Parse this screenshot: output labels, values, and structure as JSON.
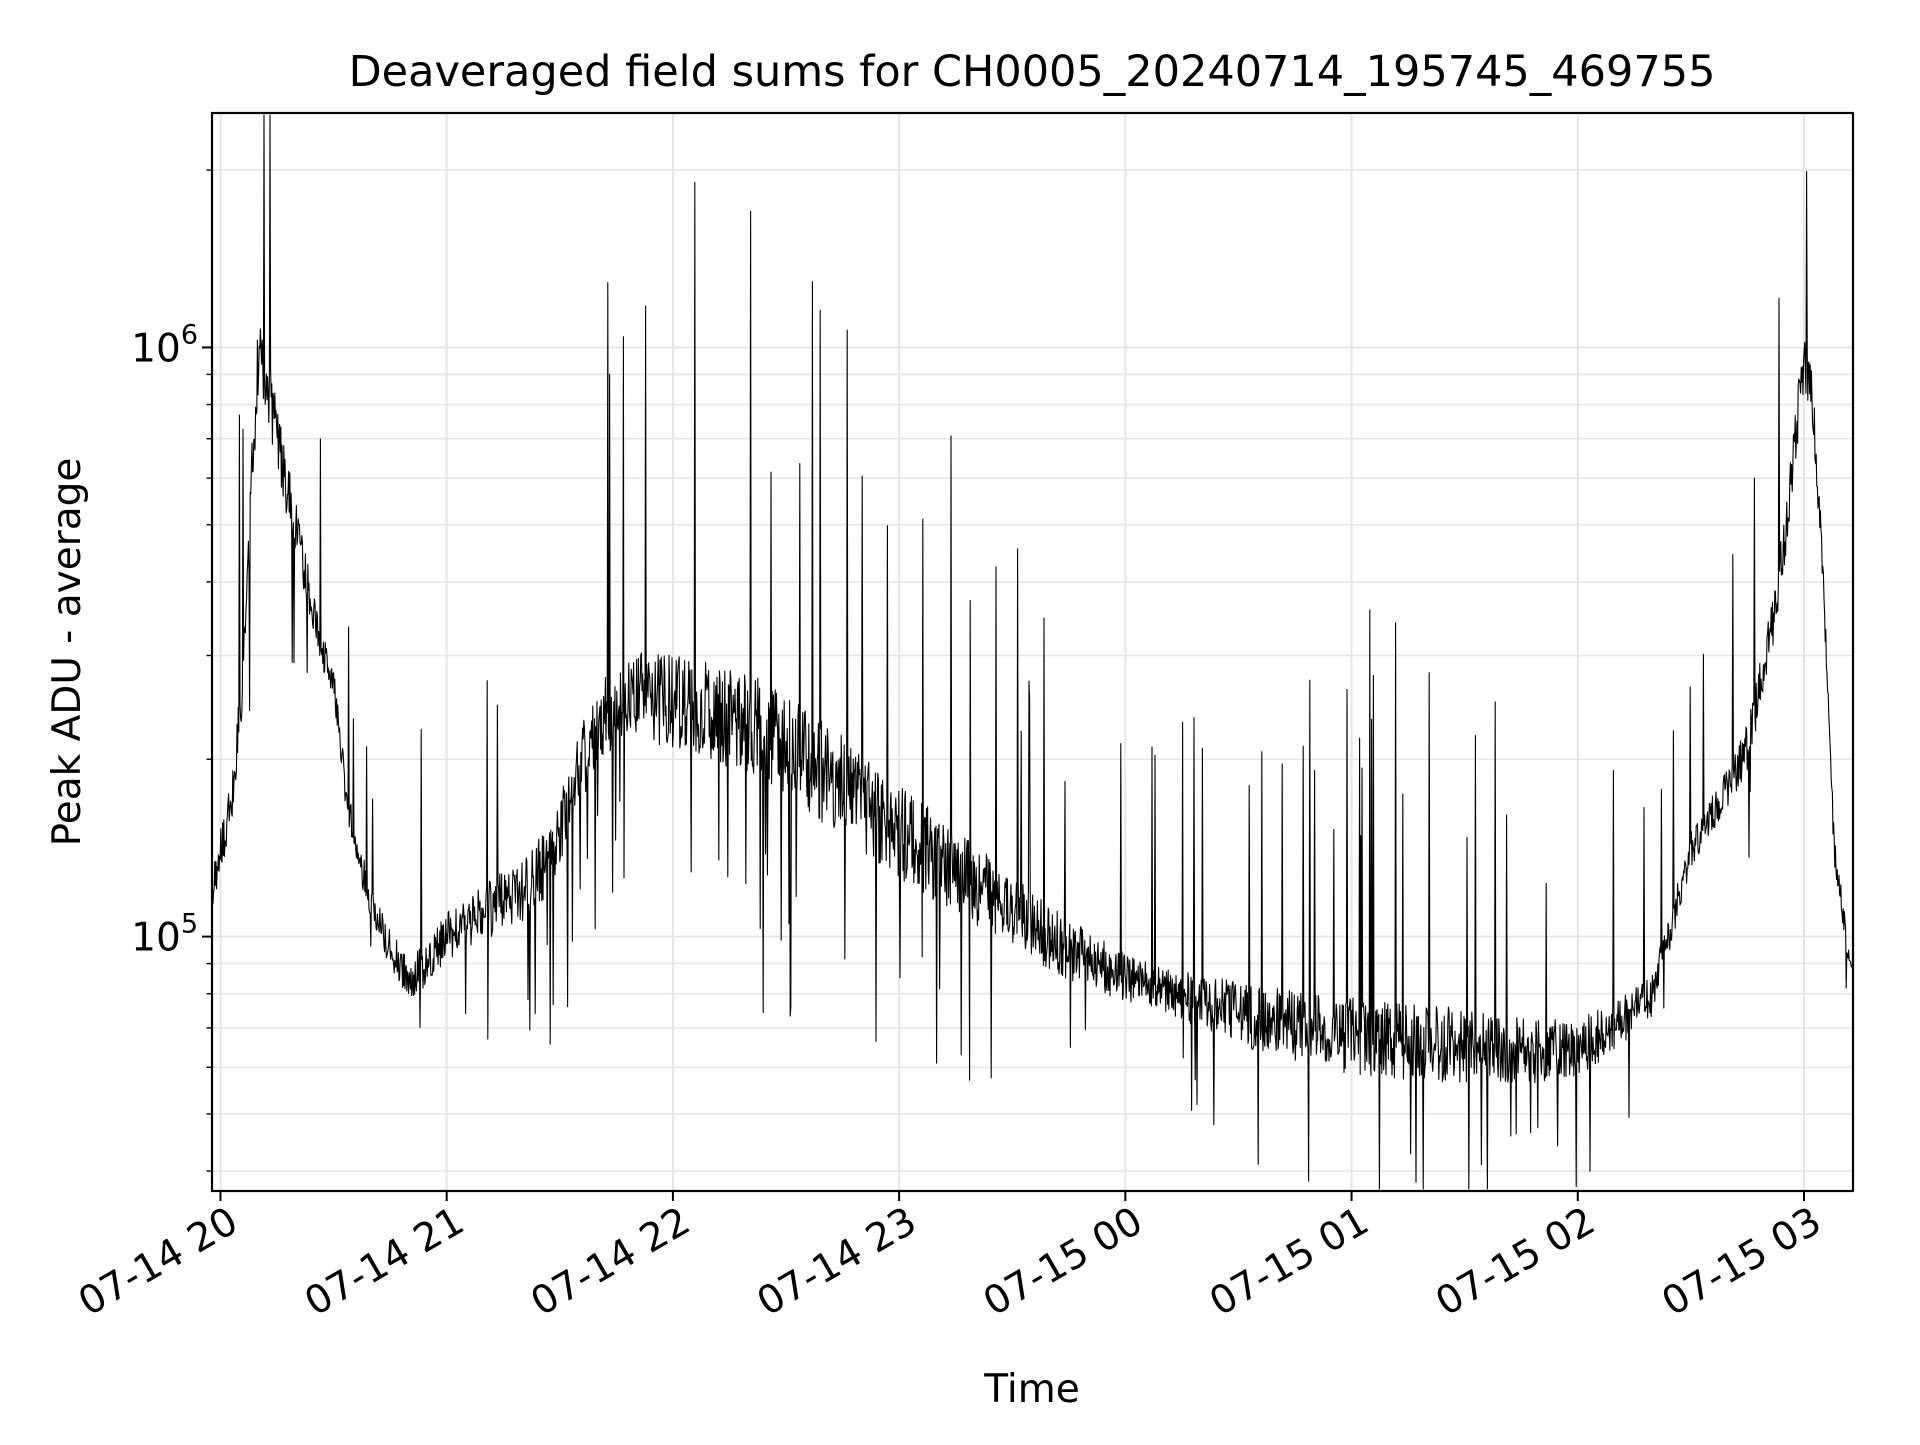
{
  "chart_data": {
    "type": "line",
    "title": "Deaveraged field sums for CH0005_20240714_195745_469755",
    "xlabel": "Time",
    "ylabel": "Peak ADU - average",
    "yscale": "log",
    "grid": true,
    "legend": "none",
    "colors": {
      "line": "#000000",
      "grid": "#e6e6e6",
      "axes": "#000000",
      "background": "#ffffff"
    },
    "xlim": [
      "2024-07-14 19:57:45",
      "2024-07-15 03:13:00"
    ],
    "ylim": [
      37000,
      2500000
    ],
    "x_ticks": [
      {
        "value": "2024-07-14 20:00",
        "label": "07-14 20"
      },
      {
        "value": "2024-07-14 21:00",
        "label": "07-14 21"
      },
      {
        "value": "2024-07-14 22:00",
        "label": "07-14 22"
      },
      {
        "value": "2024-07-14 23:00",
        "label": "07-14 23"
      },
      {
        "value": "2024-07-15 00:00",
        "label": "07-15 00"
      },
      {
        "value": "2024-07-15 01:00",
        "label": "07-15 01"
      },
      {
        "value": "2024-07-15 02:00",
        "label": "07-15 02"
      },
      {
        "value": "2024-07-15 03:00",
        "label": "07-15 03"
      }
    ],
    "y_ticks": [
      {
        "value": 100000,
        "base": "10",
        "exp": "5"
      },
      {
        "value": 1000000,
        "base": "10",
        "exp": "6"
      }
    ],
    "series": [
      {
        "x": [
          "2024-07-14 19:57:45",
          "2024-07-14 20:00",
          "2024-07-14 20:03",
          "2024-07-14 20:06",
          "2024-07-14 20:08",
          "2024-07-14 20:10",
          "2024-07-14 20:12",
          "2024-07-14 20:15",
          "2024-07-14 20:18",
          "2024-07-14 20:22",
          "2024-07-14 20:26",
          "2024-07-14 20:30",
          "2024-07-14 20:33",
          "2024-07-14 20:36",
          "2024-07-14 20:40",
          "2024-07-14 20:45",
          "2024-07-14 20:50",
          "2024-07-14 20:55",
          "2024-07-14 21:00",
          "2024-07-14 21:05",
          "2024-07-14 21:10",
          "2024-07-14 21:15",
          "2024-07-14 21:20",
          "2024-07-14 21:25",
          "2024-07-14 21:30",
          "2024-07-14 21:35",
          "2024-07-14 21:40",
          "2024-07-14 21:45",
          "2024-07-14 21:50",
          "2024-07-14 21:55",
          "2024-07-14 22:00",
          "2024-07-14 22:10",
          "2024-07-14 22:20",
          "2024-07-14 22:30",
          "2024-07-14 22:40",
          "2024-07-14 22:50",
          "2024-07-14 23:00",
          "2024-07-14 23:15",
          "2024-07-14 23:30",
          "2024-07-14 23:45",
          "2024-07-15 00:00",
          "2024-07-15 00:15",
          "2024-07-15 00:30",
          "2024-07-15 00:45",
          "2024-07-15 01:00",
          "2024-07-15 01:15",
          "2024-07-15 01:30",
          "2024-07-15 01:45",
          "2024-07-15 02:00",
          "2024-07-15 02:10",
          "2024-07-15 02:20",
          "2024-07-15 02:30",
          "2024-07-15 02:40",
          "2024-07-15 02:45",
          "2024-07-15 02:50",
          "2024-07-15 02:54",
          "2024-07-15 02:57",
          "2024-07-15 03:00",
          "2024-07-15 03:02",
          "2024-07-15 03:04",
          "2024-07-15 03:06",
          "2024-07-15 03:08",
          "2024-07-15 03:10",
          "2024-07-15 03:12"
        ],
        "y": [
          120000,
          140000,
          170000,
          280000,
          550000,
          950000,
          900000,
          700000,
          560000,
          430000,
          320000,
          270000,
          180000,
          140000,
          115000,
          95000,
          85000,
          90000,
          100000,
          105000,
          110000,
          115000,
          120000,
          130000,
          150000,
          190000,
          230000,
          250000,
          260000,
          255000,
          250000,
          240000,
          230000,
          210000,
          190000,
          170000,
          150000,
          130000,
          110000,
          95000,
          85000,
          80000,
          74000,
          70000,
          68000,
          66000,
          65000,
          64000,
          65000,
          70000,
          80000,
          140000,
          180000,
          210000,
          300000,
          420000,
          650000,
          950000,
          850000,
          550000,
          300000,
          140000,
          115000,
          90000
        ]
      }
    ]
  }
}
